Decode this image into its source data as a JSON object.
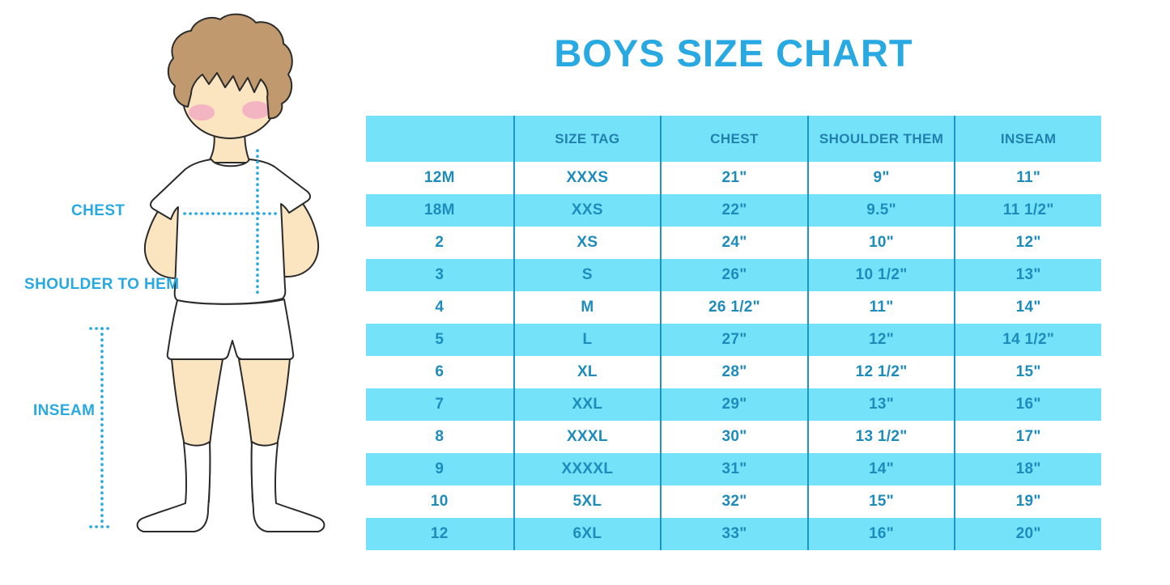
{
  "title": "BOYS SIZE CHART",
  "figure": {
    "description": "boy-in-tshirt-and-shorts-measurement-guide",
    "labels": {
      "chest": "CHEST",
      "shoulder_to_hem": "SHOULDER TO HEM",
      "inseam": "INSEAM"
    }
  },
  "colors": {
    "accent_blue": "#29A9E1",
    "band_cyan": "#74E3FA",
    "divider_blue": "#1E95C6",
    "cell_text_blue": "#1D8CBD",
    "header_text_blue": "#2180AE",
    "skin": "#FBE4C0",
    "hair": "#C09A6E",
    "blush": "#F2A9C3"
  },
  "chart_data": {
    "type": "table",
    "title": "BOYS SIZE CHART",
    "columns": [
      "",
      "SIZE TAG",
      "CHEST",
      "SHOULDER THEM",
      "INSEAM"
    ],
    "rows": [
      [
        "12M",
        "XXXS",
        "21\"",
        "9\"",
        "11\""
      ],
      [
        "18M",
        "XXS",
        "22\"",
        "9.5\"",
        "11 1/2\""
      ],
      [
        "2",
        "XS",
        "24\"",
        "10\"",
        "12\""
      ],
      [
        "3",
        "S",
        "26\"",
        "10 1/2\"",
        "13\""
      ],
      [
        "4",
        "M",
        "26 1/2\"",
        "11\"",
        "14\""
      ],
      [
        "5",
        "L",
        "27\"",
        "12\"",
        "14 1/2\""
      ],
      [
        "6",
        "XL",
        "28\"",
        "12 1/2\"",
        "15\""
      ],
      [
        "7",
        "XXL",
        "29\"",
        "13\"",
        "16\""
      ],
      [
        "8",
        "XXXL",
        "30\"",
        "13 1/2\"",
        "17\""
      ],
      [
        "9",
        "XXXXL",
        "31\"",
        "14\"",
        "18\""
      ],
      [
        "10",
        "5XL",
        "32\"",
        "15\"",
        "19\""
      ],
      [
        "12",
        "6XL",
        "33\"",
        "16\"",
        "20\""
      ]
    ],
    "row_band_pattern": "alternating white/cyan starting white, header cyan",
    "legend_position": "none",
    "grid": "vertical column dividers only"
  }
}
